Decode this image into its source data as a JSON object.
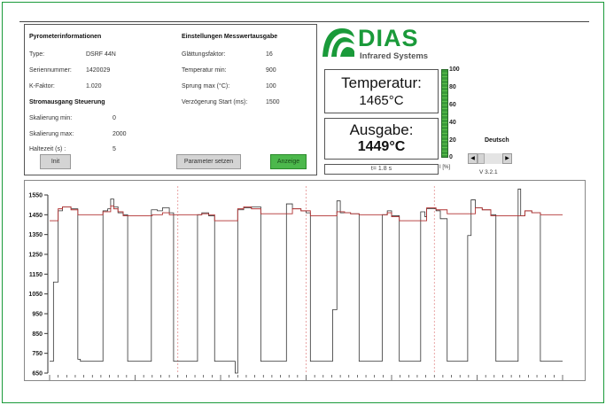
{
  "pyrometer": {
    "title": "Pyrometerinformationen",
    "rows": [
      {
        "label": "Type:",
        "value": "DSRF 44N"
      },
      {
        "label": "Seriennummer:",
        "value": "1420029"
      },
      {
        "label": "K-Faktor:",
        "value": "1.020"
      }
    ]
  },
  "current_output": {
    "title": "Stromausgang Steuerung",
    "rows": [
      {
        "label": "Skalierung min:",
        "value": "0"
      },
      {
        "label": "Skalierung max:",
        "value": "2000"
      },
      {
        "label": "Haltezeit (s) :",
        "value": "5"
      }
    ]
  },
  "settings": {
    "title": "Einstellungen Messwertausgabe",
    "rows": [
      {
        "label": "Glättungsfaktor:",
        "value": "16"
      },
      {
        "label": "Temperatur min:",
        "value": "900"
      },
      {
        "label": "Sprung max (°C):",
        "value": "100"
      },
      {
        "label": "Verzögerung Start (ms):",
        "value": "1500"
      }
    ]
  },
  "buttons": {
    "init": "Init",
    "set_params": "Parameter setzen",
    "display": "Anzeige"
  },
  "logo": {
    "name": "DIAS",
    "subtitle": "Infrared Systems",
    "color": "#1a9a3a"
  },
  "temperature": {
    "label": "Temperatur:",
    "value": "1465°C"
  },
  "output": {
    "label": "Ausgabe:",
    "value": "1449°C"
  },
  "time": "t= 1.8 s",
  "current_bar": {
    "level_percent": 100,
    "ticks": [
      "100",
      "80",
      "60",
      "40",
      "20",
      "0"
    ],
    "label": "I [%]"
  },
  "language": {
    "label": "Deutsch"
  },
  "version": "V 3.2.1",
  "chart_data": {
    "type": "line",
    "ylim": [
      650,
      1550
    ],
    "yticks": [
      "1550",
      "1450",
      "1350",
      "1250",
      "1150",
      "1050",
      "950",
      "850",
      "750",
      "650"
    ],
    "xticks": [
      "17:04:32",
      "17:04:42",
      "17:04:52",
      "17:05:02",
      "17:05:12",
      "17:05:22",
      "17:05:32"
    ],
    "xlim_seconds_from_17:04:32": [
      0,
      60
    ],
    "markers_seconds": [
      15,
      30,
      45
    ],
    "series": [
      {
        "color": "#333333",
        "step": true,
        "points": [
          [
            0,
            710
          ],
          [
            0.45,
            1110
          ],
          [
            1.0,
            1470
          ],
          [
            1.5,
            1490
          ],
          [
            2.5,
            1480
          ],
          [
            3.3,
            720
          ],
          [
            3.6,
            710
          ],
          [
            6.24,
            1470
          ],
          [
            6.8,
            1480
          ],
          [
            7.14,
            1530
          ],
          [
            7.5,
            1490
          ],
          [
            8.0,
            1460
          ],
          [
            8.6,
            1450
          ],
          [
            9.13,
            710
          ],
          [
            11.9,
            1475
          ],
          [
            12.6,
            1470
          ],
          [
            13.2,
            1485
          ],
          [
            14.0,
            1460
          ],
          [
            14.5,
            710
          ],
          [
            17.3,
            1450
          ],
          [
            17.8,
            1460
          ],
          [
            18.6,
            1445
          ],
          [
            19.3,
            710
          ],
          [
            21.7,
            650
          ],
          [
            22.0,
            1475
          ],
          [
            22.7,
            1485
          ],
          [
            23.6,
            1490
          ],
          [
            24.7,
            710
          ],
          [
            27.7,
            1505
          ],
          [
            28.4,
            1480
          ],
          [
            29.4,
            1470
          ],
          [
            30.0,
            1460
          ],
          [
            30.5,
            710
          ],
          [
            33.1,
            970
          ],
          [
            33.6,
            1520
          ],
          [
            34.0,
            1460
          ],
          [
            35.2,
            1455
          ],
          [
            36.2,
            710
          ],
          [
            38.9,
            1450
          ],
          [
            39.5,
            1470
          ],
          [
            40.0,
            1445
          ],
          [
            40.9,
            710
          ],
          [
            43.4,
            1465
          ],
          [
            43.9,
            1440
          ],
          [
            44.1,
            1480
          ],
          [
            45.2,
            1470
          ],
          [
            45.7,
            1430
          ],
          [
            46.5,
            710
          ],
          [
            48.9,
            1345
          ],
          [
            49.3,
            1525
          ],
          [
            49.8,
            1485
          ],
          [
            50.6,
            1475
          ],
          [
            51.6,
            1450
          ],
          [
            52.2,
            710
          ],
          [
            54.8,
            1580
          ],
          [
            55.1,
            1445
          ],
          [
            55.6,
            1470
          ],
          [
            56.4,
            1460
          ],
          [
            57.4,
            710
          ],
          [
            60,
            710
          ]
        ]
      },
      {
        "color": "#b03030",
        "step": true,
        "points": [
          [
            0,
            1420
          ],
          [
            1.0,
            1480
          ],
          [
            1.5,
            1490
          ],
          [
            2.5,
            1475
          ],
          [
            3.3,
            1450
          ],
          [
            6.24,
            1465
          ],
          [
            7.14,
            1495
          ],
          [
            7.5,
            1480
          ],
          [
            8.0,
            1465
          ],
          [
            8.6,
            1445
          ],
          [
            12.0,
            1450
          ],
          [
            13.2,
            1460
          ],
          [
            14.0,
            1450
          ],
          [
            17.8,
            1455
          ],
          [
            18.6,
            1450
          ],
          [
            19.3,
            1420
          ],
          [
            22.0,
            1480
          ],
          [
            22.7,
            1490
          ],
          [
            23.6,
            1480
          ],
          [
            24.7,
            1455
          ],
          [
            28.4,
            1480
          ],
          [
            29.4,
            1470
          ],
          [
            30.5,
            1445
          ],
          [
            33.6,
            1465
          ],
          [
            34.5,
            1460
          ],
          [
            35.2,
            1455
          ],
          [
            36.2,
            1450
          ],
          [
            39.5,
            1460
          ],
          [
            40.0,
            1440
          ],
          [
            40.9,
            1420
          ],
          [
            44.1,
            1485
          ],
          [
            45.2,
            1475
          ],
          [
            46.5,
            1455
          ],
          [
            49.8,
            1485
          ],
          [
            50.6,
            1475
          ],
          [
            51.6,
            1445
          ],
          [
            55.6,
            1470
          ],
          [
            56.4,
            1460
          ],
          [
            57.4,
            1450
          ],
          [
            60,
            1450
          ]
        ]
      }
    ]
  }
}
